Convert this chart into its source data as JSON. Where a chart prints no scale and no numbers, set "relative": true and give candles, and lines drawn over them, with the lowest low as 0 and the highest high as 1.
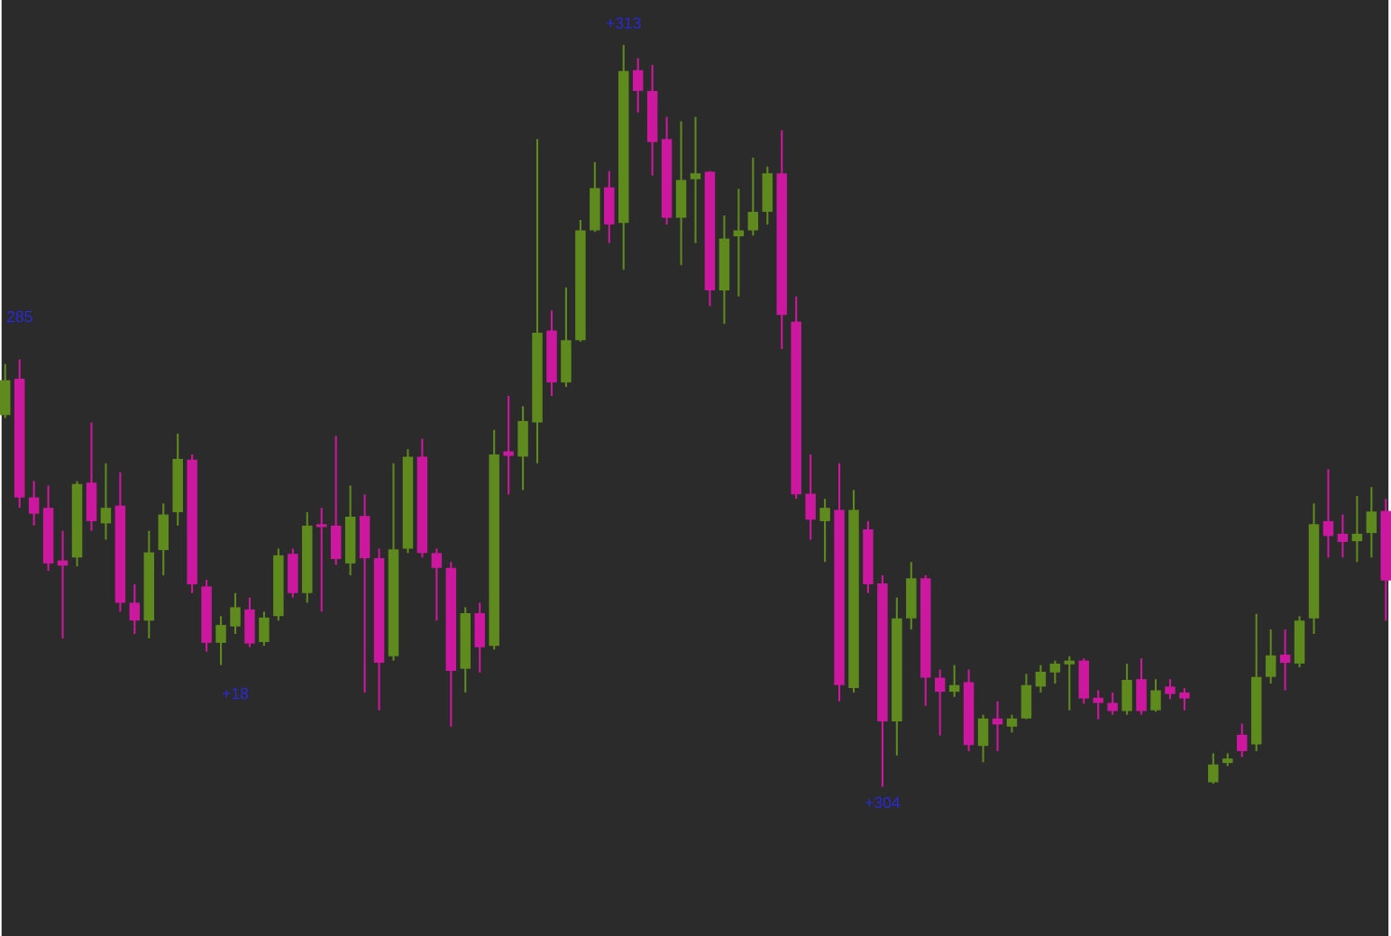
{
  "chart_data": {
    "type": "candlestick",
    "relative": true,
    "tick_labels": false,
    "categories": [
      null,
      null,
      null,
      null,
      null,
      null,
      null,
      null,
      null,
      null,
      null,
      null,
      null,
      null,
      null,
      null,
      null,
      null,
      null,
      null,
      null,
      null,
      null,
      null,
      null,
      null,
      null,
      null,
      null,
      null,
      null,
      null,
      null,
      null,
      null,
      null,
      null,
      null,
      null,
      null,
      null,
      null,
      null,
      null,
      null,
      null,
      null,
      null,
      null,
      null,
      null,
      null,
      null,
      null,
      null,
      null,
      null,
      null,
      null,
      null,
      null,
      null,
      null,
      null,
      null,
      null,
      null,
      null,
      null,
      null,
      null,
      null,
      null,
      null,
      null,
      null,
      null,
      null,
      null,
      null,
      null,
      null,
      null,
      null,
      null,
      null,
      null,
      null,
      null,
      null,
      null,
      null,
      null,
      null,
      null,
      null,
      null
    ],
    "ohlc": [
      [
        0.501,
        0.57,
        0.497,
        0.548
      ],
      [
        0.55,
        0.576,
        0.376,
        0.39
      ],
      [
        0.39,
        0.412,
        0.352,
        0.368
      ],
      [
        0.376,
        0.406,
        0.291,
        0.301
      ],
      [
        0.305,
        0.345,
        0.2,
        0.298
      ],
      [
        0.309,
        0.412,
        0.297,
        0.408
      ],
      [
        0.41,
        0.491,
        0.345,
        0.358
      ],
      [
        0.355,
        0.436,
        0.333,
        0.376
      ],
      [
        0.379,
        0.424,
        0.236,
        0.248
      ],
      [
        0.248,
        0.273,
        0.206,
        0.224
      ],
      [
        0.224,
        0.345,
        0.2,
        0.316
      ],
      [
        0.319,
        0.382,
        0.285,
        0.367
      ],
      [
        0.37,
        0.476,
        0.352,
        0.442
      ],
      [
        0.441,
        0.448,
        0.261,
        0.273
      ],
      [
        0.27,
        0.279,
        0.182,
        0.194
      ],
      [
        0.194,
        0.23,
        0.164,
        0.218
      ],
      [
        0.216,
        0.261,
        0.206,
        0.242
      ],
      [
        0.239,
        0.255,
        0.188,
        0.193
      ],
      [
        0.195,
        0.236,
        0.19,
        0.228
      ],
      [
        0.23,
        0.321,
        0.224,
        0.312
      ],
      [
        0.314,
        0.321,
        0.255,
        0.261
      ],
      [
        0.261,
        0.37,
        0.248,
        0.352
      ],
      [
        0.354,
        0.376,
        0.236,
        0.35
      ],
      [
        0.352,
        0.473,
        0.299,
        0.307
      ],
      [
        0.301,
        0.406,
        0.285,
        0.364
      ],
      [
        0.365,
        0.394,
        0.127,
        0.308
      ],
      [
        0.308,
        0.321,
        0.103,
        0.167
      ],
      [
        0.176,
        0.436,
        0.17,
        0.32
      ],
      [
        0.321,
        0.455,
        0.315,
        0.445
      ],
      [
        0.445,
        0.469,
        0.309,
        0.315
      ],
      [
        0.315,
        0.321,
        0.224,
        0.295
      ],
      [
        0.295,
        0.303,
        0.081,
        0.156
      ],
      [
        0.159,
        0.242,
        0.127,
        0.234
      ],
      [
        0.234,
        0.248,
        0.154,
        0.188
      ],
      [
        0.19,
        0.481,
        0.185,
        0.448
      ],
      [
        0.452,
        0.527,
        0.394,
        0.446
      ],
      [
        0.445,
        0.513,
        0.4,
        0.493
      ],
      [
        0.491,
        0.873,
        0.436,
        0.612
      ],
      [
        0.615,
        0.642,
        0.527,
        0.545
      ],
      [
        0.545,
        0.673,
        0.539,
        0.602
      ],
      [
        0.602,
        0.764,
        0.6,
        0.75
      ],
      [
        0.75,
        0.842,
        0.748,
        0.807
      ],
      [
        0.808,
        0.83,
        0.733,
        0.758
      ],
      [
        0.76,
        1.0,
        0.697,
        0.965
      ],
      [
        0.966,
        0.982,
        0.909,
        0.938
      ],
      [
        0.938,
        0.973,
        0.824,
        0.869
      ],
      [
        0.873,
        0.903,
        0.758,
        0.767
      ],
      [
        0.767,
        0.897,
        0.703,
        0.818
      ],
      [
        0.819,
        0.903,
        0.733,
        0.827
      ],
      [
        0.829,
        0.83,
        0.648,
        0.669
      ],
      [
        0.669,
        0.77,
        0.624,
        0.739
      ],
      [
        0.742,
        0.806,
        0.661,
        0.75
      ],
      [
        0.75,
        0.848,
        0.743,
        0.775
      ],
      [
        0.775,
        0.836,
        0.758,
        0.827
      ],
      [
        0.827,
        0.885,
        0.59,
        0.636
      ],
      [
        0.627,
        0.661,
        0.388,
        0.394
      ],
      [
        0.395,
        0.448,
        0.333,
        0.36
      ],
      [
        0.358,
        0.388,
        0.303,
        0.376
      ],
      [
        0.373,
        0.436,
        0.115,
        0.137
      ],
      [
        0.133,
        0.4,
        0.127,
        0.373
      ],
      [
        0.347,
        0.358,
        0.261,
        0.273
      ],
      [
        0.274,
        0.285,
        0.0,
        0.088
      ],
      [
        0.088,
        0.255,
        0.042,
        0.227
      ],
      [
        0.227,
        0.303,
        0.212,
        0.281
      ],
      [
        0.281,
        0.285,
        0.109,
        0.147
      ],
      [
        0.147,
        0.158,
        0.069,
        0.128
      ],
      [
        0.128,
        0.164,
        0.121,
        0.137
      ],
      [
        0.141,
        0.158,
        0.048,
        0.056
      ],
      [
        0.055,
        0.097,
        0.033,
        0.092
      ],
      [
        0.092,
        0.115,
        0.048,
        0.084
      ],
      [
        0.081,
        0.097,
        0.073,
        0.092
      ],
      [
        0.092,
        0.152,
        0.091,
        0.137
      ],
      [
        0.135,
        0.164,
        0.127,
        0.155
      ],
      [
        0.154,
        0.17,
        0.139,
        0.166
      ],
      [
        0.165,
        0.176,
        0.103,
        0.17
      ],
      [
        0.17,
        0.173,
        0.112,
        0.119
      ],
      [
        0.12,
        0.13,
        0.091,
        0.113
      ],
      [
        0.113,
        0.127,
        0.097,
        0.102
      ],
      [
        0.102,
        0.166,
        0.097,
        0.144
      ],
      [
        0.145,
        0.173,
        0.097,
        0.102
      ],
      [
        0.103,
        0.145,
        0.101,
        0.13
      ],
      [
        0.135,
        0.145,
        0.118,
        0.125
      ],
      [
        0.127,
        0.133,
        0.103,
        0.119
      ],
      null,
      [
        0.006,
        0.045,
        0.004,
        0.03
      ],
      [
        0.032,
        0.045,
        0.028,
        0.038
      ],
      [
        0.07,
        0.085,
        0.04,
        0.048
      ],
      [
        0.057,
        0.233,
        0.048,
        0.148
      ],
      [
        0.148,
        0.212,
        0.139,
        0.177
      ],
      [
        0.178,
        0.212,
        0.13,
        0.167
      ],
      [
        0.166,
        0.23,
        0.161,
        0.224
      ],
      [
        0.227,
        0.382,
        0.206,
        0.354
      ],
      [
        0.358,
        0.428,
        0.309,
        0.338
      ],
      [
        0.341,
        0.367,
        0.309,
        0.33
      ],
      [
        0.331,
        0.392,
        0.303,
        0.341
      ],
      [
        0.342,
        0.404,
        0.309,
        0.371
      ],
      [
        0.372,
        0.388,
        0.224,
        0.278
      ]
    ],
    "colors": [
      "#5f8a1e",
      "#cc189e",
      "#cc189e",
      "#cc189e",
      "#cc189e",
      "#5f8a1e",
      "#cc189e",
      "#5f8a1e",
      "#cc189e",
      "#cc189e",
      "#5f8a1e",
      "#5f8a1e",
      "#5f8a1e",
      "#cc189e",
      "#cc189e",
      "#5f8a1e",
      "#5f8a1e",
      "#cc189e",
      "#5f8a1e",
      "#5f8a1e",
      "#cc189e",
      "#5f8a1e",
      "#cc189e",
      "#cc189e",
      "#5f8a1e",
      "#cc189e",
      "#cc189e",
      "#5f8a1e",
      "#5f8a1e",
      "#cc189e",
      "#cc189e",
      "#cc189e",
      "#5f8a1e",
      "#cc189e",
      "#5f8a1e",
      "#cc189e",
      "#5f8a1e",
      "#5f8a1e",
      "#cc189e",
      "#5f8a1e",
      "#5f8a1e",
      "#5f8a1e",
      "#cc189e",
      "#5f8a1e",
      "#cc189e",
      "#cc189e",
      "#cc189e",
      "#5f8a1e",
      "#5f8a1e",
      "#cc189e",
      "#5f8a1e",
      "#5f8a1e",
      "#5f8a1e",
      "#5f8a1e",
      "#cc189e",
      "#cc189e",
      "#cc189e",
      "#5f8a1e",
      "#cc189e",
      "#5f8a1e",
      "#cc189e",
      "#cc189e",
      "#5f8a1e",
      "#5f8a1e",
      "#cc189e",
      "#cc189e",
      "#5f8a1e",
      "#cc189e",
      "#5f8a1e",
      "#cc189e",
      "#5f8a1e",
      "#5f8a1e",
      "#5f8a1e",
      "#5f8a1e",
      "#5f8a1e",
      "#cc189e",
      "#cc189e",
      "#cc189e",
      "#5f8a1e",
      "#cc189e",
      "#5f8a1e",
      "#cc189e",
      "#cc189e",
      null,
      "#5f8a1e",
      "#5f8a1e",
      "#cc189e",
      "#5f8a1e",
      "#5f8a1e",
      "#cc189e",
      "#5f8a1e",
      "#5f8a1e",
      "#cc189e",
      "#cc189e",
      "#5f8a1e",
      "#5f8a1e",
      "#cc189e"
    ],
    "annotations": [
      "+313",
      "285",
      "+18",
      "+304"
    ]
  }
}
